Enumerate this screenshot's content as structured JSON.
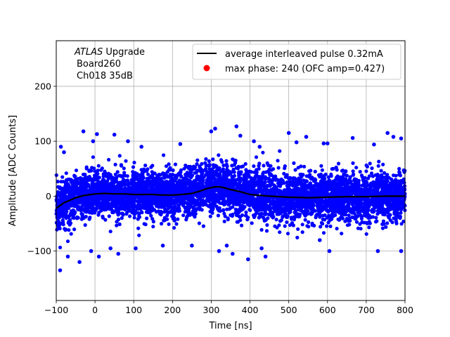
{
  "chart_data": {
    "type": "scatter",
    "xlabel": "Time [ns]",
    "ylabel": "Amplitude [ADC Counts]",
    "xlim": [
      -100,
      800
    ],
    "ylim": [
      -190,
      283
    ],
    "grid": true,
    "x_ticks": [
      "−100",
      "0",
      "100",
      "200",
      "300",
      "400",
      "500",
      "600",
      "700",
      "800"
    ],
    "x_tick_values": [
      -100,
      0,
      100,
      200,
      300,
      400,
      500,
      600,
      700,
      800
    ],
    "y_ticks": [
      "−100",
      "0",
      "100",
      "200"
    ],
    "y_tick_values": [
      -100,
      0,
      100,
      200
    ],
    "annotation": {
      "line1_italic": "ATLAS",
      "line1_rest": " Upgrade",
      "line2": "Board260",
      "line3": "Ch018 35dB"
    },
    "legend_position": "top-right",
    "series": [
      {
        "name": "average interleaved pulse 0.32mA",
        "kind": "line",
        "color": "#000000",
        "x": [
          -100,
          -90,
          -80,
          -70,
          -60,
          -50,
          -40,
          -30,
          -20,
          -10,
          0,
          25,
          50,
          75,
          100,
          125,
          150,
          175,
          200,
          225,
          250,
          270,
          290,
          310,
          320,
          330,
          350,
          375,
          400,
          450,
          500,
          550,
          600,
          650,
          700,
          750,
          800
        ],
        "y": [
          -22,
          -17,
          -12,
          -9,
          -6,
          -3,
          -1,
          1,
          2,
          3,
          4,
          5,
          4,
          4,
          3,
          3,
          3,
          2,
          2,
          3,
          5,
          9,
          14,
          17,
          17,
          16,
          12,
          8,
          3,
          0,
          -2,
          -3,
          -2,
          -1,
          -1,
          0,
          0
        ]
      },
      {
        "name": "max phase: 240 (OFC amp=0.427)",
        "kind": "marker",
        "color": "#ff0000",
        "x": [],
        "y": []
      },
      {
        "name": "",
        "kind": "scatter",
        "color": "#0000ff",
        "note_spread_rms": 22,
        "outlier_x": [
          -88,
          -80,
          -30,
          -5,
          5,
          50,
          85,
          120,
          220,
          300,
          310,
          365,
          375,
          410,
          425,
          500,
          520,
          545,
          590,
          600,
          665,
          720,
          755,
          770,
          790,
          -70,
          -40,
          -10,
          10,
          60,
          105,
          175,
          320,
          340,
          355,
          395,
          430,
          440,
          605,
          730,
          790,
          -90,
          40,
          250,
          580
        ],
        "outlier_y": [
          90,
          80,
          118,
          100,
          113,
          112,
          100,
          90,
          95,
          118,
          123,
          127,
          110,
          100,
          90,
          115,
          98,
          108,
          96,
          96,
          106,
          94,
          115,
          108,
          105,
          -110,
          -120,
          -100,
          -110,
          -105,
          -95,
          -90,
          -100,
          -90,
          -105,
          -115,
          -95,
          -110,
          -100,
          -100,
          -100,
          -135,
          -95,
          -90,
          -80
        ]
      }
    ]
  }
}
